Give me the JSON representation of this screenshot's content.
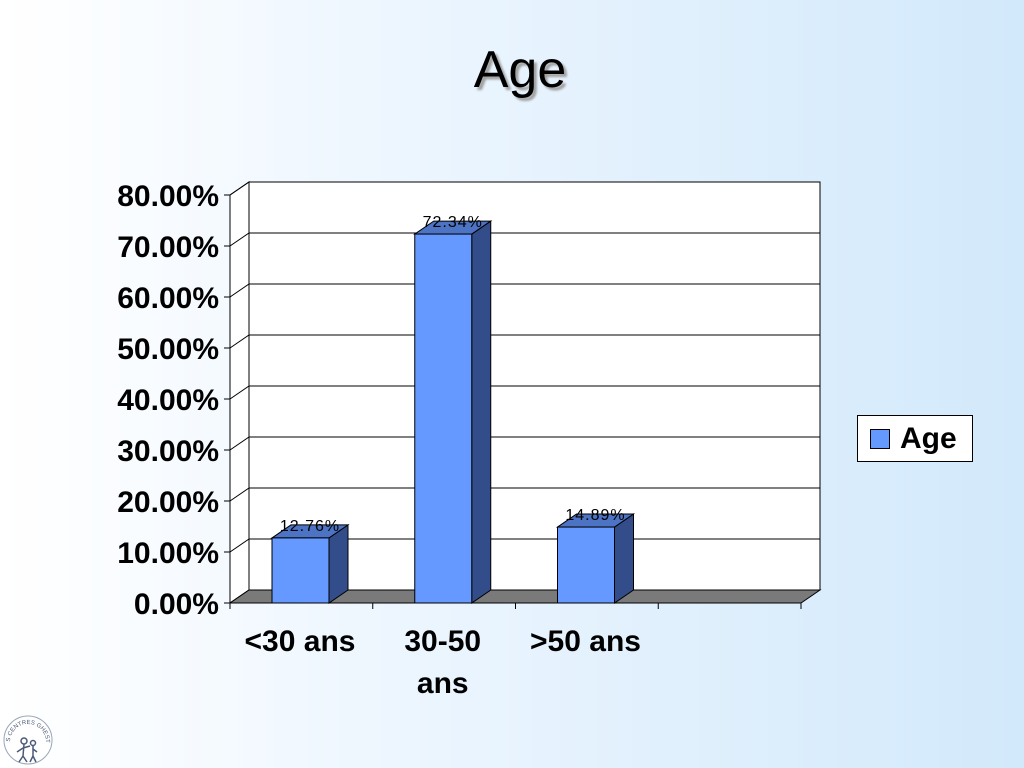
{
  "slide": {
    "title": "Age"
  },
  "legend": {
    "label": "Age"
  },
  "colors": {
    "bar_front": "#6699ff",
    "bar_side": "#334d8a",
    "bar_top": "#4d73c4",
    "floor": "#7a7a7a"
  },
  "logo": {
    "text": "LES CENTRES GHESTIO"
  },
  "chart_data": {
    "type": "bar",
    "title": "Age",
    "categories": [
      "<30 ans",
      "30-50 ans",
      ">50 ans"
    ],
    "category_labels": [
      [
        "<30 ans"
      ],
      [
        "30-50",
        "ans"
      ],
      [
        ">50 ans"
      ]
    ],
    "series": [
      {
        "name": "Age",
        "values": [
          12.76,
          72.34,
          14.89
        ]
      }
    ],
    "data_labels": [
      "12.76%",
      "72.34%",
      "14.89%"
    ],
    "ylim": [
      0,
      80
    ],
    "yticks": [
      "0.00%",
      "10.00%",
      "20.00%",
      "30.00%",
      "40.00%",
      "50.00%",
      "60.00%",
      "70.00%",
      "80.00%"
    ],
    "grid": true,
    "legend_position": "right",
    "three_d": true
  }
}
